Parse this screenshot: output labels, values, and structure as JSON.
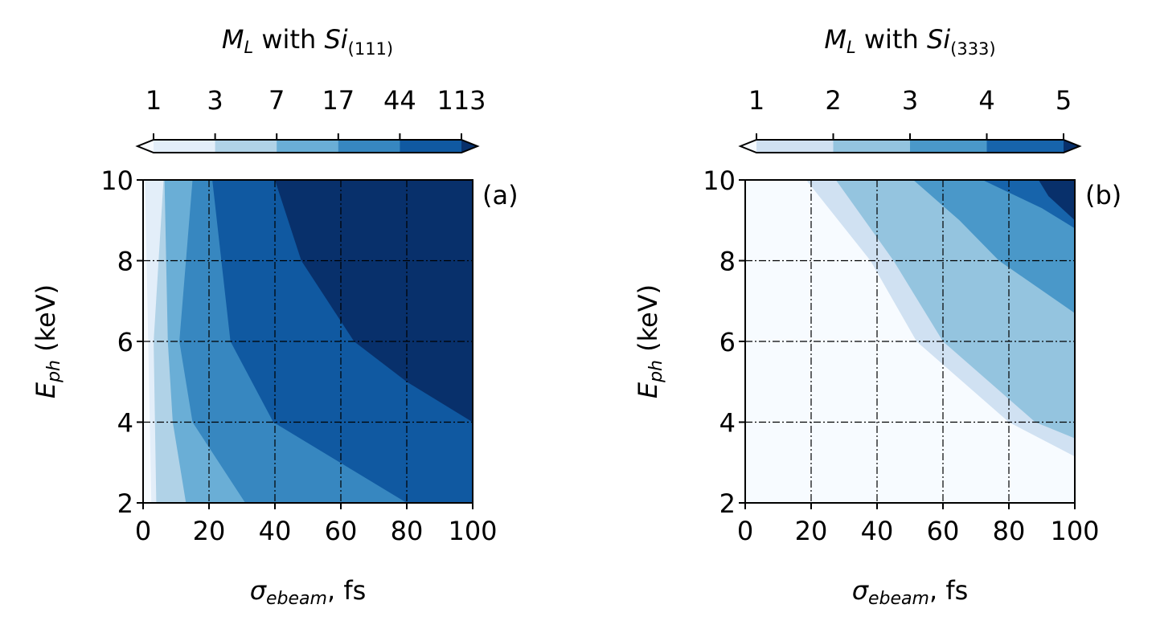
{
  "chart_data": [
    {
      "type": "contourf",
      "panel_label": "(a)",
      "colorbar": {
        "title": {
          "symbol": "M",
          "sub": "L",
          "mid": " with ",
          "material": "Si",
          "index": "(111)"
        },
        "levels": [
          1,
          3,
          7,
          17,
          44,
          113
        ],
        "tick_labels": [
          "1",
          "3",
          "7",
          "17",
          "44",
          "113"
        ],
        "colors": [
          "#e3eef9",
          "#b0d2e7",
          "#6aaed6",
          "#3787c0",
          "#1059a1"
        ],
        "extend_min_color": "#f7fbff",
        "extend_max_color": "#08306b"
      },
      "xlabel": {
        "symbol": "σ",
        "sub": "ebeam",
        "suffix": ", fs"
      },
      "ylabel": {
        "symbol": "E",
        "sub": "ph",
        "suffix": " (keV)"
      },
      "xlim": [
        0,
        100
      ],
      "ylim": [
        2,
        10
      ],
      "xticks": [
        "0",
        "20",
        "40",
        "60",
        "80",
        "100"
      ],
      "yticks": [
        "2",
        "4",
        "6",
        "8",
        "10"
      ],
      "grid": true,
      "contour_boundaries": [
        {
          "level": 1,
          "x_at_E": [
            [
              2,
              2.5
            ],
            [
              10,
              0.6
            ]
          ]
        },
        {
          "level": 3,
          "x_at_E": [
            [
              2,
              4.0
            ],
            [
              6,
              3.2
            ],
            [
              10,
              6.2
            ]
          ]
        },
        {
          "level": 7,
          "x_at_E": [
            [
              2,
              13
            ],
            [
              4,
              9
            ],
            [
              6,
              7.5
            ],
            [
              10,
              6.5
            ]
          ]
        },
        {
          "level": 17,
          "x_at_E": [
            [
              2,
              31
            ],
            [
              4,
              15
            ],
            [
              6,
              11
            ],
            [
              10,
              15
            ]
          ]
        },
        {
          "level": 44,
          "x_at_E": [
            [
              2,
              80
            ],
            [
              4,
              39.5
            ],
            [
              6,
              26.5
            ],
            [
              10,
              21
            ]
          ]
        },
        {
          "level": 113,
          "x_at_E": [
            [
              4,
              100
            ],
            [
              5,
              80
            ],
            [
              6,
              64
            ],
            [
              8,
              48
            ],
            [
              10,
              40
            ]
          ]
        }
      ]
    },
    {
      "type": "contourf",
      "panel_label": "(b)",
      "colorbar": {
        "title": {
          "symbol": "M",
          "sub": "L",
          "mid": " with ",
          "material": "Si",
          "index": "(333)"
        },
        "levels": [
          1,
          2,
          3,
          4,
          5
        ],
        "tick_labels": [
          "1",
          "2",
          "3",
          "4",
          "5"
        ],
        "colors": [
          "#d0e1f2",
          "#94c4df",
          "#4a98c9",
          "#1764ab"
        ],
        "extend_min_color": "#f7fbff",
        "extend_max_color": "#08306b"
      },
      "xlabel": {
        "symbol": "σ",
        "sub": "ebeam",
        "suffix": ", fs"
      },
      "ylabel": {
        "symbol": "E",
        "sub": "ph",
        "suffix": " (keV)"
      },
      "xlim": [
        0,
        100
      ],
      "ylim": [
        2,
        10
      ],
      "xticks": [
        "0",
        "20",
        "40",
        "60",
        "80",
        "100"
      ],
      "yticks": [
        "2",
        "4",
        "6",
        "8",
        "10"
      ],
      "grid": true,
      "contour_boundaries": [
        {
          "level": 1,
          "x_at_E": [
            [
              3.15,
              100
            ],
            [
              4,
              80
            ],
            [
              6,
              52
            ],
            [
              8,
              38
            ],
            [
              10,
              18.5
            ]
          ]
        },
        {
          "level": 2,
          "x_at_E": [
            [
              3.6,
              100
            ],
            [
              4,
              88
            ],
            [
              6,
              60
            ],
            [
              8,
              45
            ],
            [
              10,
              27.5
            ]
          ]
        },
        {
          "level": 3,
          "x_at_E": [
            [
              6.7,
              100
            ],
            [
              8,
              77
            ],
            [
              9,
              65
            ],
            [
              10,
              51
            ]
          ]
        },
        {
          "level": 4,
          "x_at_E": [
            [
              8.8,
              100
            ],
            [
              9.3,
              90
            ],
            [
              10,
              72
            ]
          ]
        },
        {
          "level": 5,
          "x_at_E": [
            [
              9.0,
              100
            ],
            [
              9.6,
              92
            ],
            [
              10,
              89
            ]
          ]
        }
      ]
    }
  ]
}
